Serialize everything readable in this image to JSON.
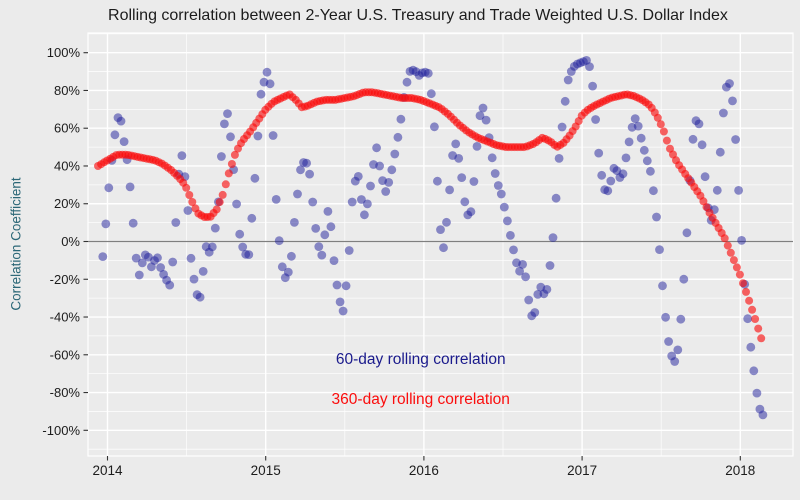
{
  "chart_data": {
    "type": "scatter",
    "title": "Rolling correlation between 2-Year U.S. Treasury and Trade Weighted U.S. Dollar Index",
    "xlabel": "",
    "ylabel": "Correlation Coefficient",
    "xlim": [
      2013.88,
      2018.34
    ],
    "ylim": [
      -113,
      110
    ],
    "grid": "on",
    "legend_position": "annotations-inside-plot",
    "x_ticks": [
      {
        "label": "2014",
        "value": 2014
      },
      {
        "label": "2015",
        "value": 2015
      },
      {
        "label": "2016",
        "value": 2016
      },
      {
        "label": "2017",
        "value": 2017
      },
      {
        "label": "2018",
        "value": 2018
      }
    ],
    "x_minor_gridlines": [
      2014.5,
      2015.5,
      2016.5,
      2017.5
    ],
    "y_ticks": [
      {
        "label": "100%",
        "value": 100
      },
      {
        "label": "80%",
        "value": 80
      },
      {
        "label": "60%",
        "value": 60
      },
      {
        "label": "40%",
        "value": 40
      },
      {
        "label": "20%",
        "value": 20
      },
      {
        "label": "0%",
        "value": 0
      },
      {
        "label": "-20%",
        "value": -20
      },
      {
        "label": "-40%",
        "value": -40
      },
      {
        "label": "-60%",
        "value": -60
      },
      {
        "label": "-80%",
        "value": -80
      },
      {
        "label": "-100%",
        "value": -100
      }
    ],
    "y_minor_gridlines": [
      110,
      90,
      70,
      50,
      30,
      10,
      -10,
      -30,
      -50,
      -70,
      -90,
      -110
    ],
    "zero_line": {
      "value": 0,
      "color": "#7f7f7f"
    },
    "colors": {
      "background": "#ebebeb",
      "panel": "#ebebeb",
      "grid": "#ffffff",
      "title": "#1c1c1c",
      "tick_label": "#1c1c1c",
      "ylabel": "#2b6777",
      "series_60day": "#1f1f9c",
      "series_360day": "#fa0a0a"
    },
    "series": [
      {
        "name": "60-day rolling correlation",
        "style": "points",
        "color": "#1f1f9c",
        "opacity": 0.5,
        "radius": 4.4,
        "points": [
          [
            2013.97,
            -8
          ],
          [
            2013.99,
            10
          ],
          [
            2014.01,
            30
          ],
          [
            2014.04,
            52
          ],
          [
            2014.06,
            65
          ],
          [
            2014.08,
            67
          ],
          [
            2014.1,
            55
          ],
          [
            2014.12,
            46
          ],
          [
            2014.14,
            32
          ],
          [
            2014.16,
            12
          ],
          [
            2014.18,
            -8
          ],
          [
            2014.2,
            -18
          ],
          [
            2014.23,
            -8
          ],
          [
            2014.25,
            -6
          ],
          [
            2014.28,
            -14
          ],
          [
            2014.31,
            -7
          ],
          [
            2014.34,
            -15
          ],
          [
            2014.37,
            -20
          ],
          [
            2014.4,
            -24
          ],
          [
            2014.43,
            8
          ],
          [
            2014.46,
            48
          ],
          [
            2014.48,
            43
          ],
          [
            2014.51,
            15
          ],
          [
            2014.53,
            -12
          ],
          [
            2014.56,
            -26
          ],
          [
            2014.58,
            -33
          ],
          [
            2014.6,
            -20
          ],
          [
            2014.62,
            -2
          ],
          [
            2014.64,
            -6
          ],
          [
            2014.66,
            -4
          ],
          [
            2014.68,
            6
          ],
          [
            2014.7,
            20
          ],
          [
            2014.72,
            45
          ],
          [
            2014.75,
            72
          ],
          [
            2014.77,
            62
          ],
          [
            2014.79,
            45
          ],
          [
            2014.81,
            25
          ],
          [
            2014.84,
            0
          ],
          [
            2014.87,
            -6
          ],
          [
            2014.89,
            -10
          ],
          [
            2014.92,
            20
          ],
          [
            2014.95,
            55
          ],
          [
            2014.97,
            78
          ],
          [
            2015.0,
            88
          ],
          [
            2015.02,
            92
          ],
          [
            2015.04,
            70
          ],
          [
            2015.06,
            30
          ],
          [
            2015.08,
            5
          ],
          [
            2015.1,
            -12
          ],
          [
            2015.13,
            -21
          ],
          [
            2015.16,
            -10
          ],
          [
            2015.19,
            18
          ],
          [
            2015.22,
            38
          ],
          [
            2015.25,
            44
          ],
          [
            2015.28,
            35
          ],
          [
            2015.31,
            10
          ],
          [
            2015.34,
            -5
          ],
          [
            2015.36,
            -8
          ],
          [
            2015.39,
            17
          ],
          [
            2015.41,
            10
          ],
          [
            2015.44,
            -18
          ],
          [
            2015.47,
            -32
          ],
          [
            2015.49,
            -37
          ],
          [
            2015.52,
            -15
          ],
          [
            2015.55,
            25
          ],
          [
            2015.58,
            38
          ],
          [
            2015.6,
            25
          ],
          [
            2015.62,
            13
          ],
          [
            2015.65,
            22
          ],
          [
            2015.68,
            40
          ],
          [
            2015.7,
            50
          ],
          [
            2015.73,
            35
          ],
          [
            2015.76,
            26
          ],
          [
            2015.79,
            35
          ],
          [
            2015.82,
            48
          ],
          [
            2015.85,
            62
          ],
          [
            2015.88,
            80
          ],
          [
            2015.91,
            90
          ],
          [
            2015.94,
            91
          ],
          [
            2015.97,
            88
          ],
          [
            2016.0,
            90
          ],
          [
            2016.03,
            89
          ],
          [
            2016.06,
            70
          ],
          [
            2016.08,
            40
          ],
          [
            2016.1,
            10
          ],
          [
            2016.12,
            -6
          ],
          [
            2016.15,
            15
          ],
          [
            2016.18,
            45
          ],
          [
            2016.2,
            52
          ],
          [
            2016.23,
            40
          ],
          [
            2016.26,
            20
          ],
          [
            2016.29,
            10
          ],
          [
            2016.32,
            35
          ],
          [
            2016.35,
            65
          ],
          [
            2016.37,
            72
          ],
          [
            2016.4,
            62
          ],
          [
            2016.43,
            45
          ],
          [
            2016.46,
            32
          ],
          [
            2016.49,
            25
          ],
          [
            2016.52,
            14
          ],
          [
            2016.55,
            2
          ],
          [
            2016.58,
            -10
          ],
          [
            2016.61,
            -17
          ],
          [
            2016.63,
            -10
          ],
          [
            2016.66,
            -30
          ],
          [
            2016.69,
            -43
          ],
          [
            2016.72,
            -28
          ],
          [
            2016.74,
            -24
          ],
          [
            2016.77,
            -30
          ],
          [
            2016.79,
            -18
          ],
          [
            2016.82,
            5
          ],
          [
            2016.85,
            40
          ],
          [
            2016.88,
            66
          ],
          [
            2016.91,
            85
          ],
          [
            2016.94,
            92
          ],
          [
            2016.97,
            94
          ],
          [
            2017.0,
            95
          ],
          [
            2017.03,
            96
          ],
          [
            2017.05,
            92
          ],
          [
            2017.07,
            80
          ],
          [
            2017.09,
            60
          ],
          [
            2017.11,
            42
          ],
          [
            2017.13,
            32
          ],
          [
            2017.15,
            25
          ],
          [
            2017.17,
            28
          ],
          [
            2017.19,
            35
          ],
          [
            2017.21,
            42
          ],
          [
            2017.23,
            33
          ],
          [
            2017.26,
            36
          ],
          [
            2017.29,
            50
          ],
          [
            2017.32,
            62
          ],
          [
            2017.34,
            66
          ],
          [
            2017.37,
            56
          ],
          [
            2017.4,
            46
          ],
          [
            2017.43,
            38
          ],
          [
            2017.46,
            22
          ],
          [
            2017.49,
            -5
          ],
          [
            2017.52,
            -35
          ],
          [
            2017.55,
            -55
          ],
          [
            2017.57,
            -62
          ],
          [
            2017.59,
            -64
          ],
          [
            2017.61,
            -55
          ],
          [
            2017.63,
            -35
          ],
          [
            2017.65,
            -12
          ],
          [
            2017.67,
            15
          ],
          [
            2017.69,
            45
          ],
          [
            2017.71,
            62
          ],
          [
            2017.73,
            66
          ],
          [
            2017.75,
            58
          ],
          [
            2017.77,
            42
          ],
          [
            2017.79,
            22
          ],
          [
            2017.81,
            10
          ],
          [
            2017.83,
            14
          ],
          [
            2017.86,
            30
          ],
          [
            2017.88,
            55
          ],
          [
            2017.9,
            75
          ],
          [
            2017.92,
            86
          ],
          [
            2017.94,
            82
          ],
          [
            2017.96,
            68
          ],
          [
            2017.98,
            40
          ],
          [
            2018.0,
            12
          ],
          [
            2018.02,
            -15
          ],
          [
            2018.04,
            -35
          ],
          [
            2018.06,
            -52
          ],
          [
            2018.08,
            -65
          ],
          [
            2018.1,
            -78
          ],
          [
            2018.12,
            -88
          ],
          [
            2018.14,
            -92
          ],
          [
            2018.16,
            -91
          ]
        ]
      },
      {
        "name": "360-day rolling correlation",
        "style": "points-thick-line",
        "color": "#fa0a0a",
        "opacity": 0.62,
        "radius": 4.0,
        "points": [
          [
            2013.94,
            40
          ],
          [
            2014.0,
            43
          ],
          [
            2014.06,
            46
          ],
          [
            2014.12,
            46
          ],
          [
            2014.18,
            45
          ],
          [
            2014.24,
            44
          ],
          [
            2014.3,
            43
          ],
          [
            2014.35,
            41
          ],
          [
            2014.4,
            38
          ],
          [
            2014.45,
            34
          ],
          [
            2014.49,
            30
          ],
          [
            2014.53,
            22
          ],
          [
            2014.57,
            15
          ],
          [
            2014.61,
            13
          ],
          [
            2014.65,
            13
          ],
          [
            2014.69,
            17
          ],
          [
            2014.73,
            25
          ],
          [
            2014.77,
            37
          ],
          [
            2014.81,
            47
          ],
          [
            2014.85,
            53
          ],
          [
            2014.9,
            58
          ],
          [
            2014.95,
            64
          ],
          [
            2015.0,
            70
          ],
          [
            2015.05,
            74
          ],
          [
            2015.1,
            76
          ],
          [
            2015.15,
            78
          ],
          [
            2015.19,
            75
          ],
          [
            2015.23,
            71
          ],
          [
            2015.27,
            72
          ],
          [
            2015.32,
            74
          ],
          [
            2015.38,
            75
          ],
          [
            2015.44,
            75
          ],
          [
            2015.5,
            76
          ],
          [
            2015.56,
            77
          ],
          [
            2015.62,
            79
          ],
          [
            2015.68,
            79
          ],
          [
            2015.74,
            78
          ],
          [
            2015.8,
            77
          ],
          [
            2015.86,
            76
          ],
          [
            2015.92,
            76
          ],
          [
            2015.98,
            75
          ],
          [
            2016.04,
            73
          ],
          [
            2016.1,
            71
          ],
          [
            2016.16,
            67
          ],
          [
            2016.22,
            62
          ],
          [
            2016.28,
            58
          ],
          [
            2016.34,
            55
          ],
          [
            2016.4,
            53
          ],
          [
            2016.46,
            51
          ],
          [
            2016.52,
            50
          ],
          [
            2016.58,
            50
          ],
          [
            2016.64,
            50
          ],
          [
            2016.7,
            52
          ],
          [
            2016.75,
            55
          ],
          [
            2016.8,
            53
          ],
          [
            2016.84,
            50
          ],
          [
            2016.88,
            52
          ],
          [
            2016.92,
            56
          ],
          [
            2016.96,
            61
          ],
          [
            2017.0,
            67
          ],
          [
            2017.04,
            70
          ],
          [
            2017.08,
            72
          ],
          [
            2017.13,
            74
          ],
          [
            2017.18,
            76
          ],
          [
            2017.23,
            77
          ],
          [
            2017.28,
            78
          ],
          [
            2017.33,
            77
          ],
          [
            2017.38,
            75
          ],
          [
            2017.43,
            72
          ],
          [
            2017.47,
            67
          ],
          [
            2017.51,
            60
          ],
          [
            2017.55,
            50
          ],
          [
            2017.6,
            42
          ],
          [
            2017.65,
            36
          ],
          [
            2017.7,
            30
          ],
          [
            2017.75,
            24
          ],
          [
            2017.8,
            16
          ],
          [
            2017.85,
            9
          ],
          [
            2017.9,
            2
          ],
          [
            2017.95,
            -8
          ],
          [
            2018.0,
            -18
          ],
          [
            2018.05,
            -30
          ],
          [
            2018.09,
            -40
          ],
          [
            2018.12,
            -48
          ],
          [
            2018.15,
            -56
          ]
        ]
      }
    ],
    "annotations": [
      {
        "text": "60-day rolling correlation",
        "color": "#1a1a8c",
        "x": 2015.98,
        "y": -63
      },
      {
        "text": "360-day rolling correlation",
        "color": "#fb0d0d",
        "x": 2015.98,
        "y": -84
      }
    ]
  }
}
